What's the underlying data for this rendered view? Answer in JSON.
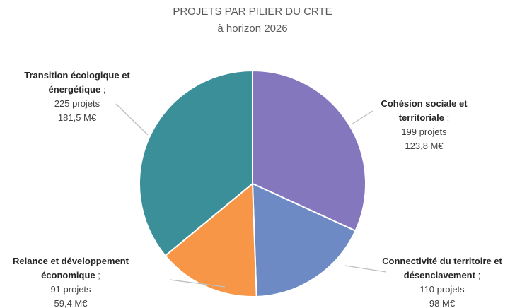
{
  "chart_data": {
    "type": "pie",
    "title": "PROJETS PAR PILIER DU CRTE",
    "subtitle": "à horizon 2026",
    "categories": [
      "Cohésion sociale et territoriale",
      "Connectivité du territoire et désenclavement",
      "Relance et développement économique",
      "Transition écologique et énergétique"
    ],
    "values": [
      199,
      110,
      91,
      225
    ],
    "value_labels": [
      "199 projets",
      "110 projets",
      "91 projets",
      "225 projets"
    ],
    "amount_labels": [
      "123,8 M€",
      "98 M€",
      "59,4 M€",
      "181,5 M€"
    ],
    "separator": ";",
    "colors": [
      "#8577bd",
      "#6d8ac4",
      "#f79646",
      "#3b8f98"
    ]
  }
}
